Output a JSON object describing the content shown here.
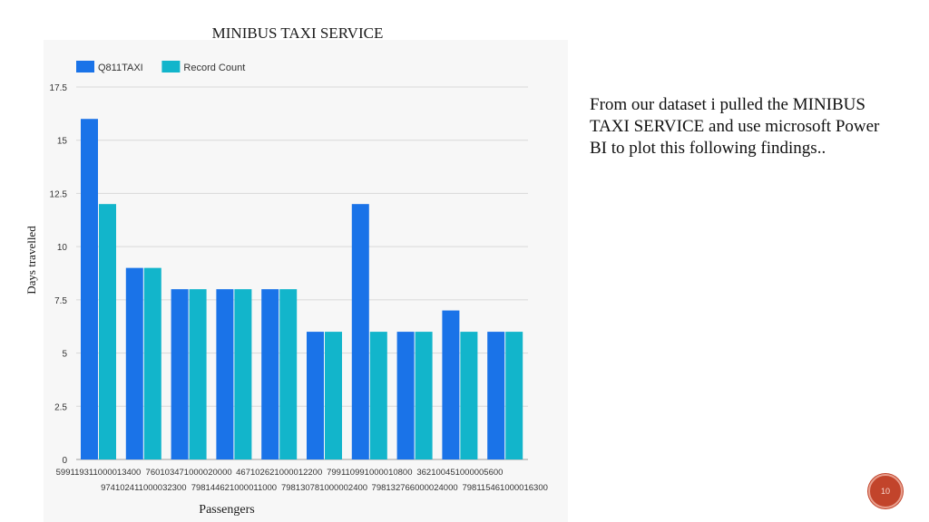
{
  "chart_data": {
    "type": "bar",
    "title": "MINIBUS TAXI SERVICE",
    "xlabel": "Passengers",
    "ylabel": "Days travelled",
    "ylim": [
      0,
      17.5
    ],
    "yticks": [
      0,
      2.5,
      5,
      7.5,
      10,
      12.5,
      15,
      17.5
    ],
    "ytick_labels": [
      "0",
      "2.5",
      "5",
      "7.5",
      "10",
      "12.5",
      "15",
      "17.5"
    ],
    "grid": true,
    "legend_position": "top-left",
    "categories": [
      "599119311000013400",
      "974102411000032300",
      "760103471000020000",
      "798144621000011000",
      "467102621000012200",
      "798130781000002400",
      "799110991000010800",
      "798132766000024000",
      "362100451000005600",
      "798115461000016300"
    ],
    "series": [
      {
        "name": "Q811TAXI",
        "color": "#1a73e8",
        "values": [
          16,
          9,
          8,
          8,
          8,
          6,
          12,
          6,
          7,
          6
        ]
      },
      {
        "name": "Record Count",
        "color": "#12b5cb",
        "values": [
          12,
          9,
          8,
          8,
          8,
          6,
          6,
          6,
          6,
          6
        ]
      }
    ]
  },
  "description": {
    "text": "From our dataset i pulled the MINIBUS TAXI SERVICE and use microsoft Power BI to plot this following findings.."
  },
  "page_badge": {
    "number": "10",
    "color": "#c2442b"
  }
}
